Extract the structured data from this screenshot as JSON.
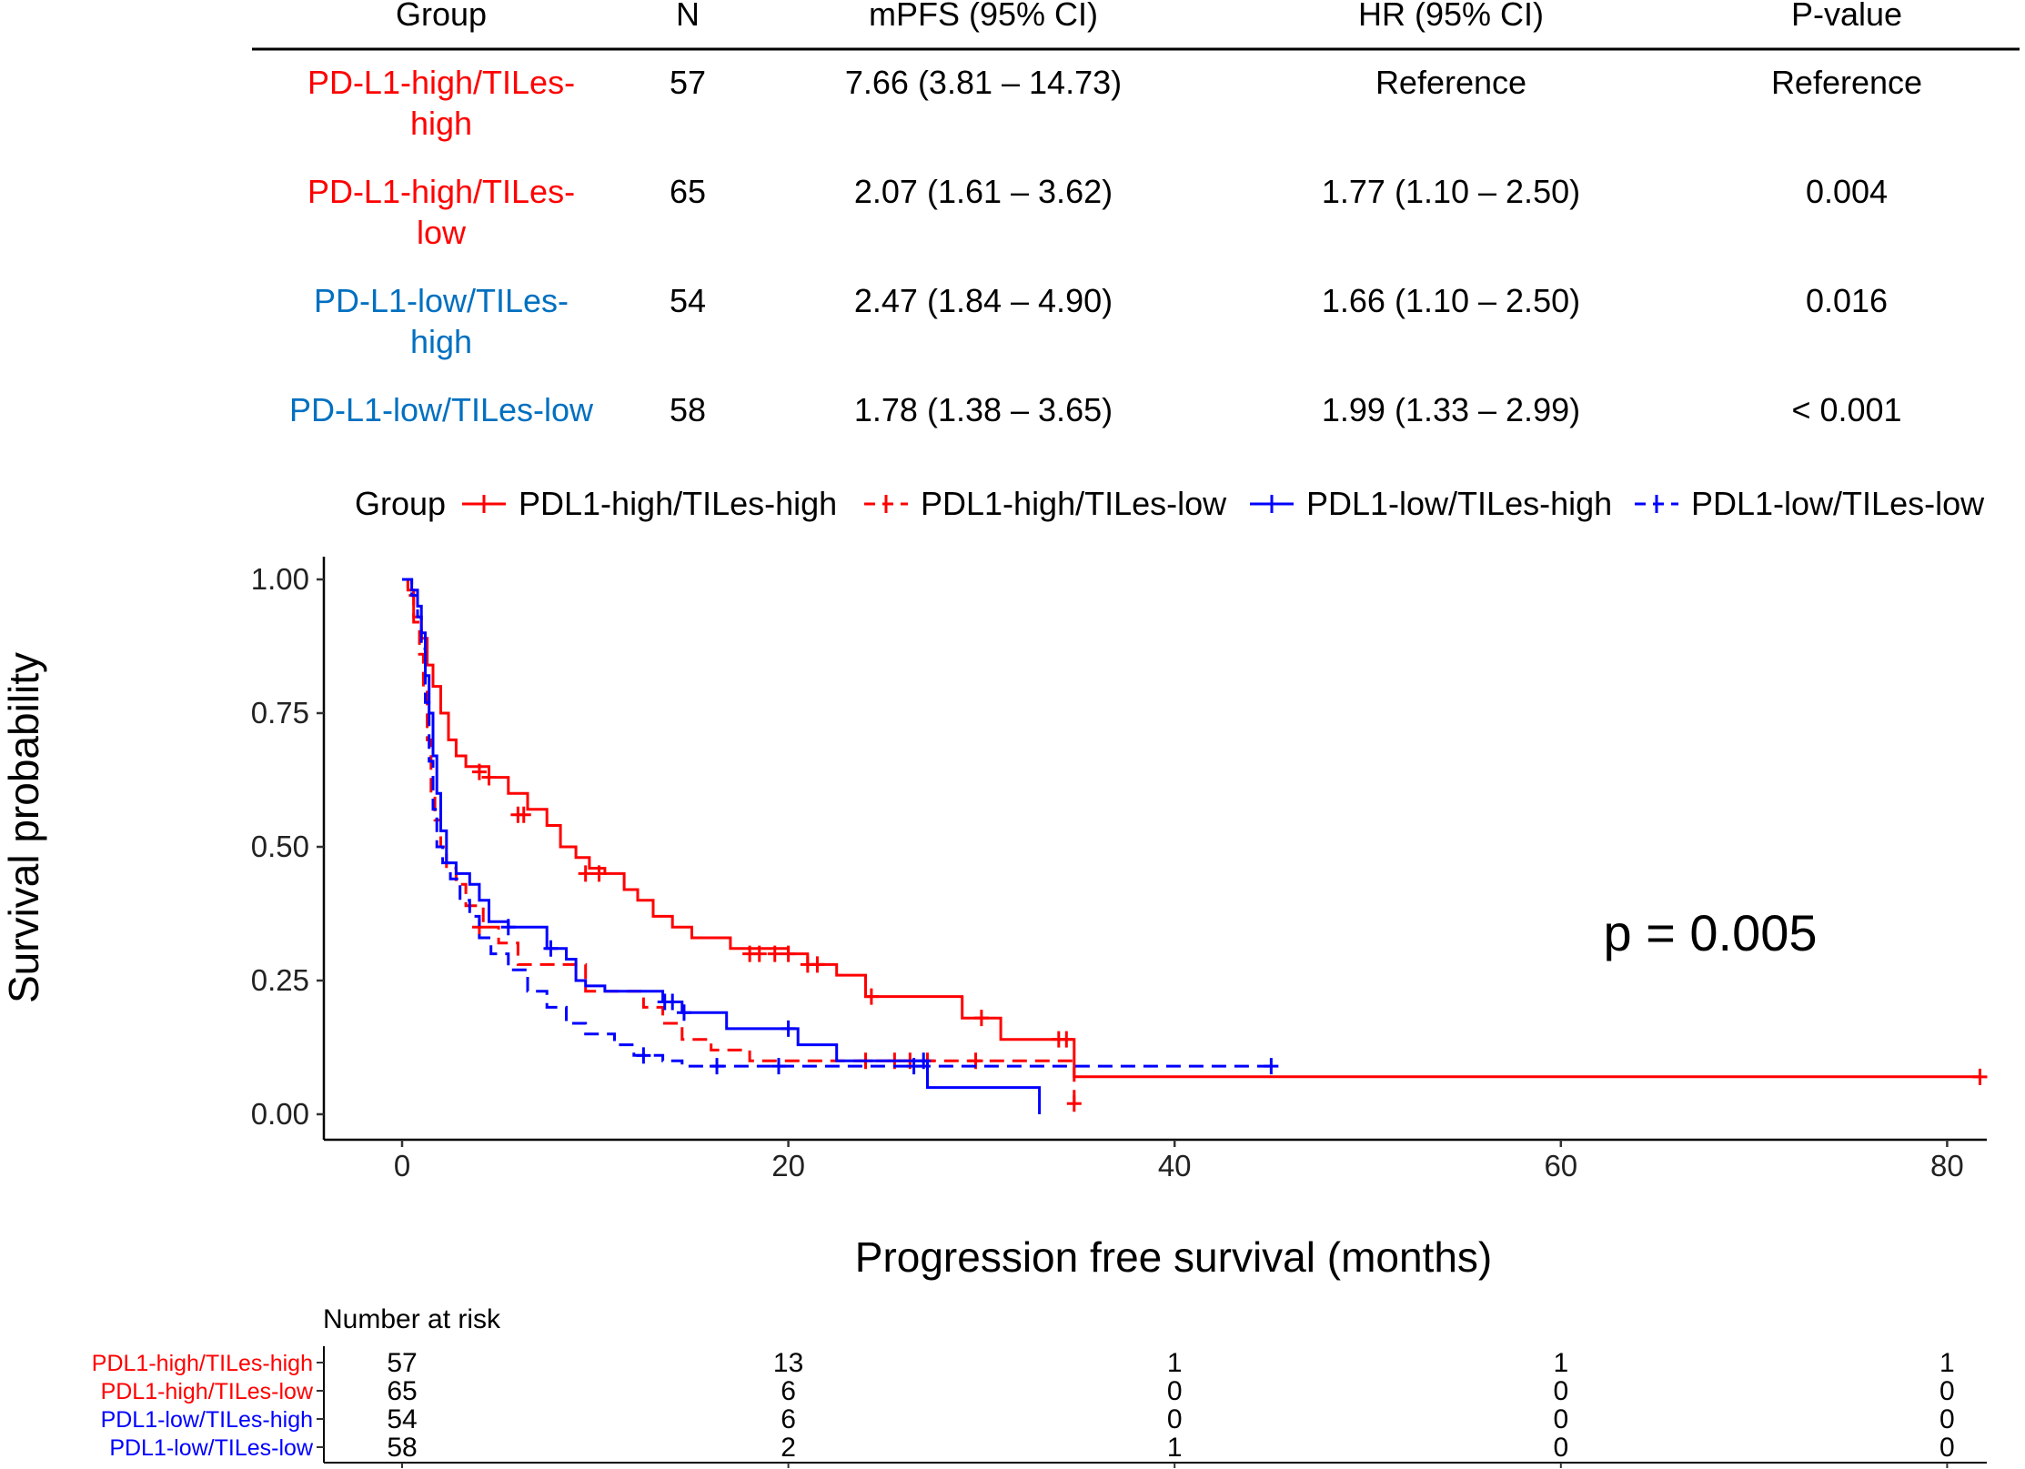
{
  "table": {
    "headers": [
      "Group",
      "N",
      "mPFS (95% CI)",
      "HR (95% CI)",
      "P-value"
    ],
    "rows": [
      {
        "group_line1": "PD-L1-high/TILes-",
        "group_line2": "high",
        "color": "#ff0000",
        "n": "57",
        "mpfs": "7.66 (3.81 – 14.73)",
        "hr": "Reference",
        "p": "Reference"
      },
      {
        "group_line1": "PD-L1-high/TILes-",
        "group_line2": "low",
        "color": "#ff0000",
        "n": "65",
        "mpfs": "2.07 (1.61 – 3.62)",
        "hr": "1.77 (1.10 – 2.50)",
        "p": "0.004"
      },
      {
        "group_line1": "PD-L1-low/TILes-",
        "group_line2": "high",
        "color": "#0070c0",
        "n": "54",
        "mpfs": "2.47 (1.84 – 4.90)",
        "hr": "1.66 (1.10 – 2.50)",
        "p": "0.016"
      },
      {
        "group_line1": "PD-L1-low/TILes-low",
        "group_line2": "",
        "color": "#0070c0",
        "n": "58",
        "mpfs": "1.78 (1.38 – 3.65)",
        "hr": "1.99 (1.33 – 2.99)",
        "p": "< 0.001"
      }
    ]
  },
  "chart_data": {
    "type": "line",
    "subtype": "kaplan-meier",
    "xlabel": "Progression free survival (months)",
    "ylabel": "Survival probability",
    "xlim": [
      0,
      82
    ],
    "ylim": [
      0,
      1
    ],
    "xticks": [
      0,
      20,
      40,
      60,
      80
    ],
    "yticks": [
      0,
      0.25,
      0.5,
      0.75,
      1.0
    ],
    "ytick_labels": [
      "0.00",
      "0.25",
      "0.50",
      "0.75",
      "1.00"
    ],
    "grid": false,
    "legend_title": "Group",
    "legend_position": "top",
    "annotation": "p = 0.005",
    "series": [
      {
        "name": "PDL1-high/TILes-high",
        "color": "#ff0000",
        "dash": "solid",
        "steps": [
          [
            0,
            1.0
          ],
          [
            0.3,
            0.98
          ],
          [
            0.6,
            0.93
          ],
          [
            1.0,
            0.89
          ],
          [
            1.3,
            0.84
          ],
          [
            1.6,
            0.8
          ],
          [
            2.0,
            0.75
          ],
          [
            2.4,
            0.7
          ],
          [
            2.8,
            0.67
          ],
          [
            3.3,
            0.65
          ],
          [
            4.5,
            0.63
          ],
          [
            5.5,
            0.6
          ],
          [
            6.5,
            0.57
          ],
          [
            7.5,
            0.54
          ],
          [
            8.2,
            0.5
          ],
          [
            9.0,
            0.48
          ],
          [
            9.7,
            0.46
          ],
          [
            10.5,
            0.45
          ],
          [
            11.5,
            0.42
          ],
          [
            12.2,
            0.4
          ],
          [
            13.0,
            0.37
          ],
          [
            14.0,
            0.35
          ],
          [
            15.0,
            0.33
          ],
          [
            17.0,
            0.31
          ],
          [
            20.0,
            0.3
          ],
          [
            21.0,
            0.28
          ],
          [
            22.5,
            0.26
          ],
          [
            24.0,
            0.22
          ],
          [
            27.5,
            0.22
          ],
          [
            29.0,
            0.18
          ],
          [
            31.0,
            0.14
          ],
          [
            34.0,
            0.14
          ],
          [
            34.8,
            0.07
          ],
          [
            81.7,
            0.07
          ]
        ],
        "censor": [
          [
            4.0,
            0.64
          ],
          [
            4.5,
            0.63
          ],
          [
            6.0,
            0.56
          ],
          [
            6.3,
            0.56
          ],
          [
            9.5,
            0.45
          ],
          [
            10.2,
            0.45
          ],
          [
            18.0,
            0.3
          ],
          [
            18.5,
            0.3
          ],
          [
            19.3,
            0.3
          ],
          [
            20.0,
            0.3
          ],
          [
            21.0,
            0.28
          ],
          [
            21.5,
            0.28
          ],
          [
            24.3,
            0.22
          ],
          [
            30.0,
            0.18
          ],
          [
            34.0,
            0.14
          ],
          [
            34.4,
            0.14
          ],
          [
            81.7,
            0.07
          ]
        ]
      },
      {
        "name": "PDL1-high/TILes-low",
        "color": "#ff0000",
        "dash": "dashed",
        "steps": [
          [
            0,
            1.0
          ],
          [
            0.3,
            0.97
          ],
          [
            0.6,
            0.92
          ],
          [
            0.9,
            0.86
          ],
          [
            1.1,
            0.8
          ],
          [
            1.3,
            0.7
          ],
          [
            1.5,
            0.6
          ],
          [
            1.7,
            0.55
          ],
          [
            2.0,
            0.5
          ],
          [
            2.3,
            0.46
          ],
          [
            2.8,
            0.43
          ],
          [
            3.3,
            0.39
          ],
          [
            4.2,
            0.35
          ],
          [
            5.0,
            0.32
          ],
          [
            6.0,
            0.28
          ],
          [
            9.0,
            0.28
          ],
          [
            9.5,
            0.23
          ],
          [
            10.5,
            0.23
          ],
          [
            12.5,
            0.2
          ],
          [
            13.5,
            0.17
          ],
          [
            14.5,
            0.14
          ],
          [
            16.0,
            0.12
          ],
          [
            18.0,
            0.1
          ],
          [
            34.8,
            0.1
          ],
          [
            34.8,
            0.02
          ]
        ],
        "censor": [
          [
            4.0,
            0.35
          ],
          [
            24.0,
            0.1
          ],
          [
            25.5,
            0.1
          ],
          [
            26.3,
            0.1
          ],
          [
            27.2,
            0.1
          ],
          [
            29.7,
            0.1
          ],
          [
            34.8,
            0.02
          ]
        ]
      },
      {
        "name": "PDL1-low/TILes-high",
        "color": "#0000ff",
        "dash": "solid",
        "steps": [
          [
            0,
            1.0
          ],
          [
            0.5,
            0.98
          ],
          [
            0.8,
            0.95
          ],
          [
            1.0,
            0.9
          ],
          [
            1.2,
            0.82
          ],
          [
            1.4,
            0.75
          ],
          [
            1.6,
            0.67
          ],
          [
            1.8,
            0.6
          ],
          [
            2.0,
            0.53
          ],
          [
            2.3,
            0.47
          ],
          [
            2.8,
            0.45
          ],
          [
            3.5,
            0.43
          ],
          [
            4.0,
            0.4
          ],
          [
            4.5,
            0.36
          ],
          [
            5.5,
            0.35
          ],
          [
            7.5,
            0.31
          ],
          [
            8.5,
            0.29
          ],
          [
            9.0,
            0.25
          ],
          [
            9.5,
            0.24
          ],
          [
            10.5,
            0.23
          ],
          [
            12.0,
            0.23
          ],
          [
            13.5,
            0.21
          ],
          [
            14.5,
            0.19
          ],
          [
            16.5,
            0.19
          ],
          [
            16.8,
            0.16
          ],
          [
            20.0,
            0.16
          ],
          [
            20.5,
            0.13
          ],
          [
            22.5,
            0.1
          ],
          [
            26.5,
            0.1
          ],
          [
            27.2,
            0.05
          ],
          [
            33.0,
            0.05
          ],
          [
            33.0,
            0.0
          ]
        ],
        "censor": [
          [
            5.5,
            0.35
          ],
          [
            7.7,
            0.31
          ],
          [
            13.6,
            0.21
          ],
          [
            14.0,
            0.21
          ],
          [
            14.6,
            0.19
          ],
          [
            20.0,
            0.16
          ],
          [
            27.0,
            0.1
          ]
        ]
      },
      {
        "name": "PDL1-low/TILes-low",
        "color": "#0000ff",
        "dash": "dashed",
        "steps": [
          [
            0,
            1.0
          ],
          [
            0.5,
            0.97
          ],
          [
            0.8,
            0.93
          ],
          [
            1.0,
            0.87
          ],
          [
            1.2,
            0.77
          ],
          [
            1.4,
            0.66
          ],
          [
            1.6,
            0.57
          ],
          [
            1.8,
            0.5
          ],
          [
            2.1,
            0.47
          ],
          [
            2.5,
            0.44
          ],
          [
            3.0,
            0.4
          ],
          [
            3.5,
            0.37
          ],
          [
            4.0,
            0.33
          ],
          [
            4.6,
            0.3
          ],
          [
            5.5,
            0.27
          ],
          [
            6.5,
            0.23
          ],
          [
            7.5,
            0.2
          ],
          [
            8.5,
            0.17
          ],
          [
            9.5,
            0.15
          ],
          [
            11.0,
            0.13
          ],
          [
            12.0,
            0.11
          ],
          [
            13.5,
            0.1
          ],
          [
            14.5,
            0.09
          ],
          [
            45.0,
            0.09
          ]
        ],
        "censor": [
          [
            12.5,
            0.11
          ],
          [
            16.3,
            0.09
          ],
          [
            19.5,
            0.09
          ],
          [
            26.5,
            0.09
          ],
          [
            45.0,
            0.09
          ]
        ]
      }
    ],
    "risk_table": {
      "title": "Number at risk",
      "time_points": [
        0,
        20,
        40,
        60,
        80
      ],
      "rows": [
        {
          "name": "PDL1-high/TILes-high",
          "color": "#ff0000",
          "counts": [
            "57",
            "13",
            "1",
            "1",
            "1"
          ]
        },
        {
          "name": "PDL1-high/TILes-low",
          "color": "#ff0000",
          "counts": [
            "65",
            "6",
            "0",
            "0",
            "0"
          ]
        },
        {
          "name": "PDL1-low/TILes-high",
          "color": "#0000ff",
          "counts": [
            "54",
            "6",
            "0",
            "0",
            "0"
          ]
        },
        {
          "name": "PDL1-low/TILes-low",
          "color": "#0000ff",
          "counts": [
            "58",
            "2",
            "1",
            "0",
            "0"
          ]
        }
      ]
    }
  }
}
